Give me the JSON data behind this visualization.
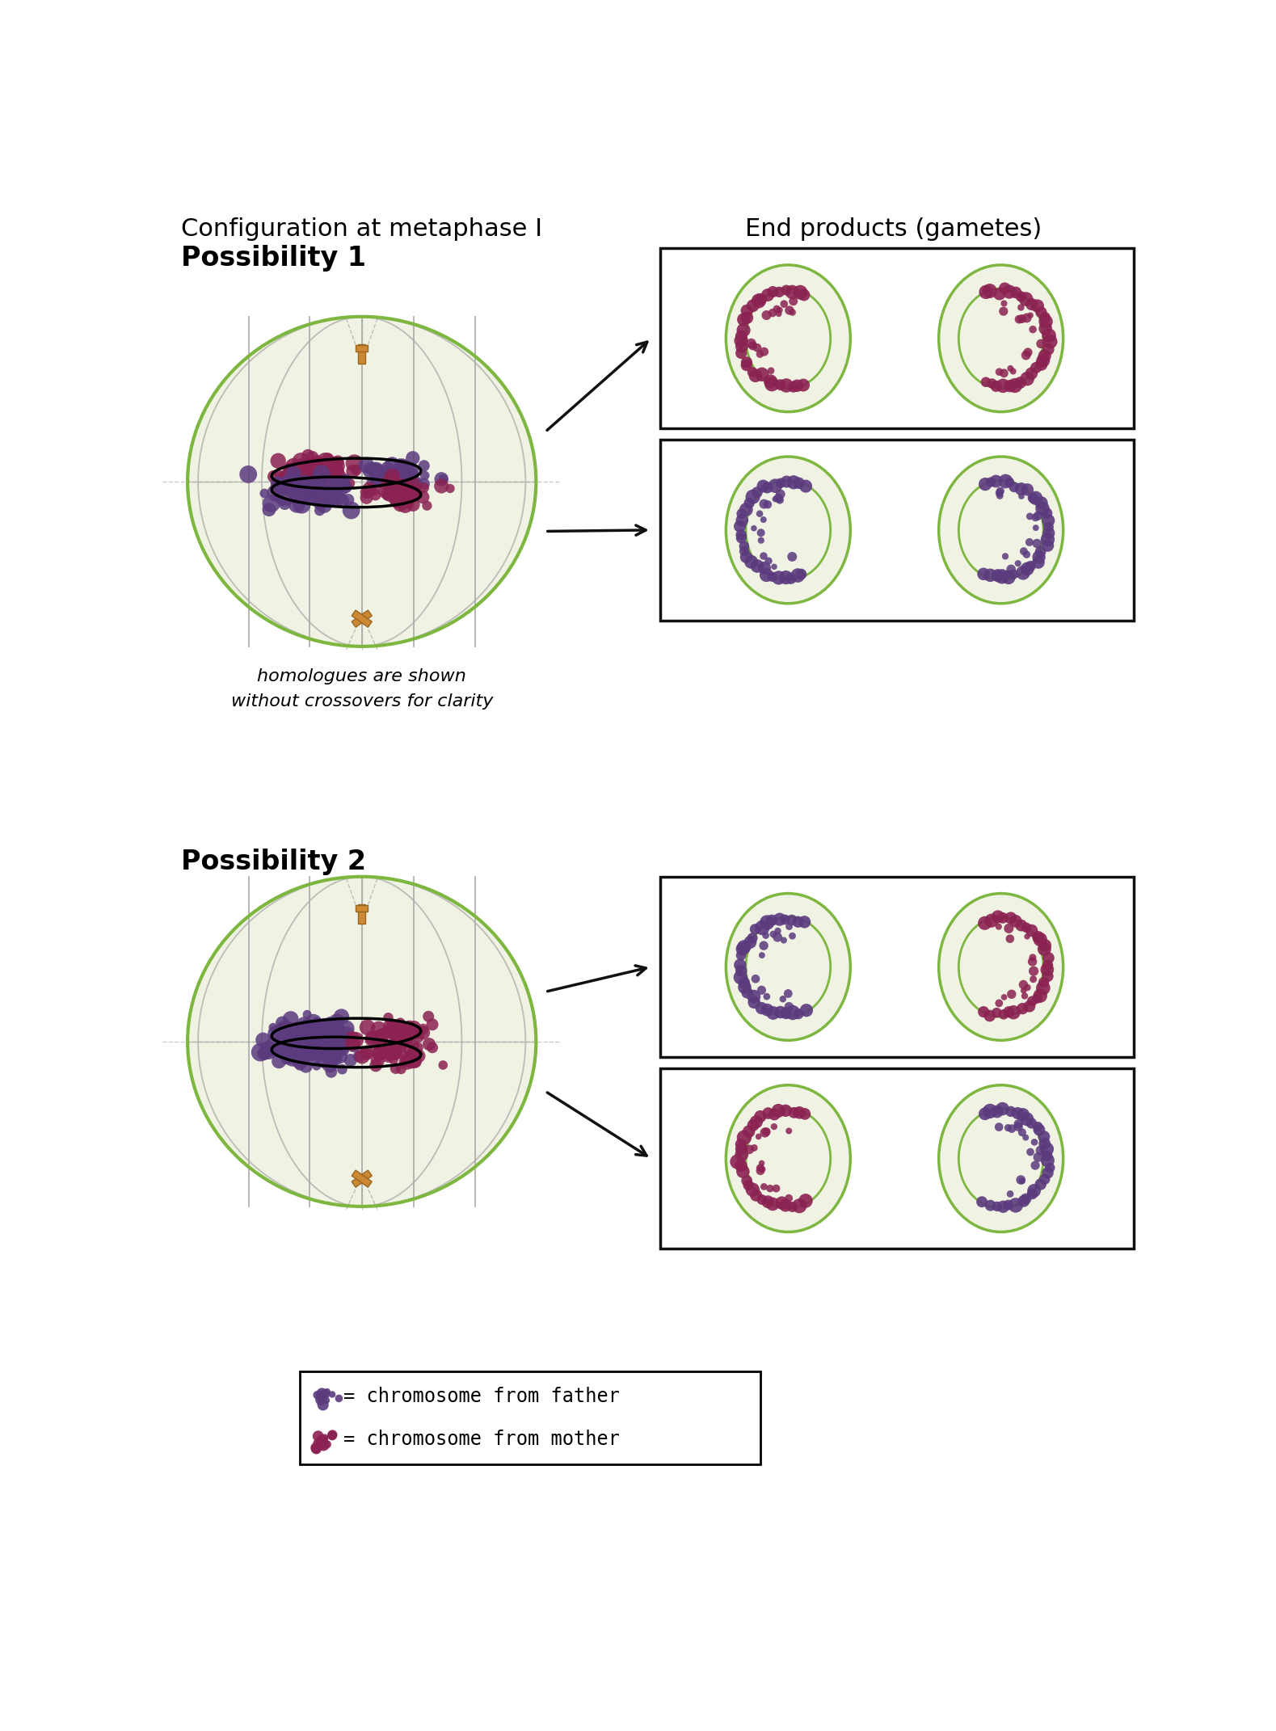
{
  "title_left": "Configuration at metaphase I",
  "title_right": "End products (gametes)",
  "possibility1_label": "Possibility 1",
  "possibility2_label": "Possibility 2",
  "italic_text": "homologues are shown\nwithout crossovers for clarity",
  "legend_mother": "= chromosome from mother",
  "legend_father": "= chromosome from father",
  "bg_color": "#ffffff",
  "cell_fill": "#f0f2e4",
  "cell_border": "#7db73f",
  "spindle_color": "#aaaaaa",
  "centromere_color": "#cc8833",
  "mother_color": "#8b2252",
  "father_color": "#5b3a7e",
  "arrow_color": "#111111",
  "box_border": "#111111",
  "gamete_fill": "#f0f2e4",
  "gamete_border": "#7db73f"
}
